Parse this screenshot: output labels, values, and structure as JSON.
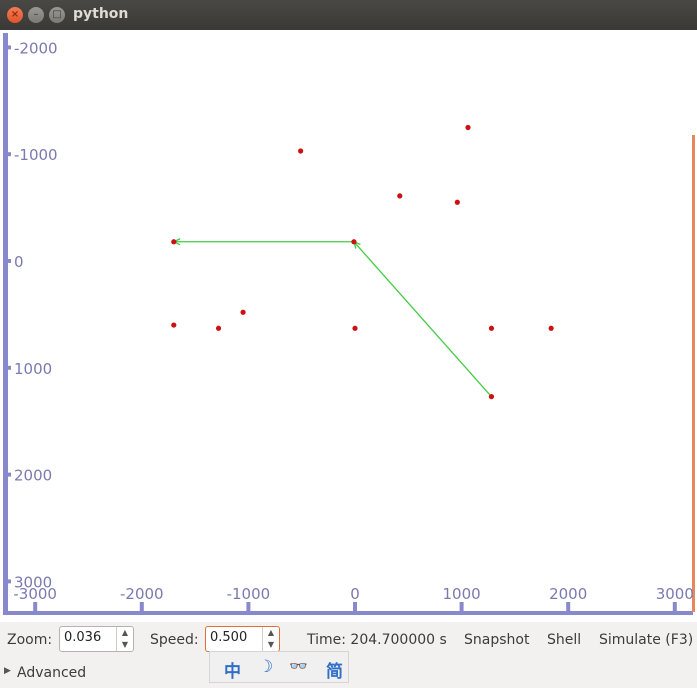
{
  "window": {
    "title": "python"
  },
  "plot": {
    "y_ticks": [
      {
        "label": "-2000",
        "value": -2000
      },
      {
        "label": "-1000",
        "value": -1000
      },
      {
        "label": "0",
        "value": 0
      },
      {
        "label": "1000",
        "value": 1000
      },
      {
        "label": "2000",
        "value": 2000
      },
      {
        "label": "3000",
        "value": 3000
      }
    ],
    "x_ticks": [
      {
        "label": "-3000",
        "value": -3000
      },
      {
        "label": "-2000",
        "value": -2000
      },
      {
        "label": "-1000",
        "value": -1000
      },
      {
        "label": "0",
        "value": 0
      },
      {
        "label": "1000",
        "value": 1000
      },
      {
        "label": "2000",
        "value": 2000
      },
      {
        "label": "3000",
        "value": 3000
      }
    ],
    "points": [
      [
        -510,
        -1030
      ],
      [
        1060,
        -1250
      ],
      [
        420,
        -610
      ],
      [
        960,
        -550
      ],
      [
        -1700,
        -180
      ],
      [
        -10,
        -180
      ],
      [
        -1700,
        600
      ],
      [
        -1280,
        630
      ],
      [
        -1050,
        480
      ],
      [
        0,
        630
      ],
      [
        1280,
        630
      ],
      [
        1840,
        630
      ],
      [
        1280,
        1270
      ]
    ],
    "path": [
      [
        1280,
        1270
      ],
      [
        -10,
        -180
      ],
      [
        -1700,
        -180
      ]
    ],
    "colors": {
      "axis": "#8888cc",
      "axis_right": "#e8885a",
      "point": "#cc1111",
      "path": "#44cc44",
      "tick_text": "#7a7ab0"
    }
  },
  "controls": {
    "zoom_label": "Zoom:",
    "zoom_value": "0.036",
    "speed_label": "Speed:",
    "speed_value": "0.500",
    "time_text": "Time: 204.700000 s",
    "snapshot_label": "Snapshot",
    "shell_label": "Shell",
    "simulate_label": "Simulate (F3)",
    "advanced_label": "Advanced"
  },
  "ime": {
    "chars": [
      "中",
      "☽",
      "👓",
      "简"
    ]
  }
}
